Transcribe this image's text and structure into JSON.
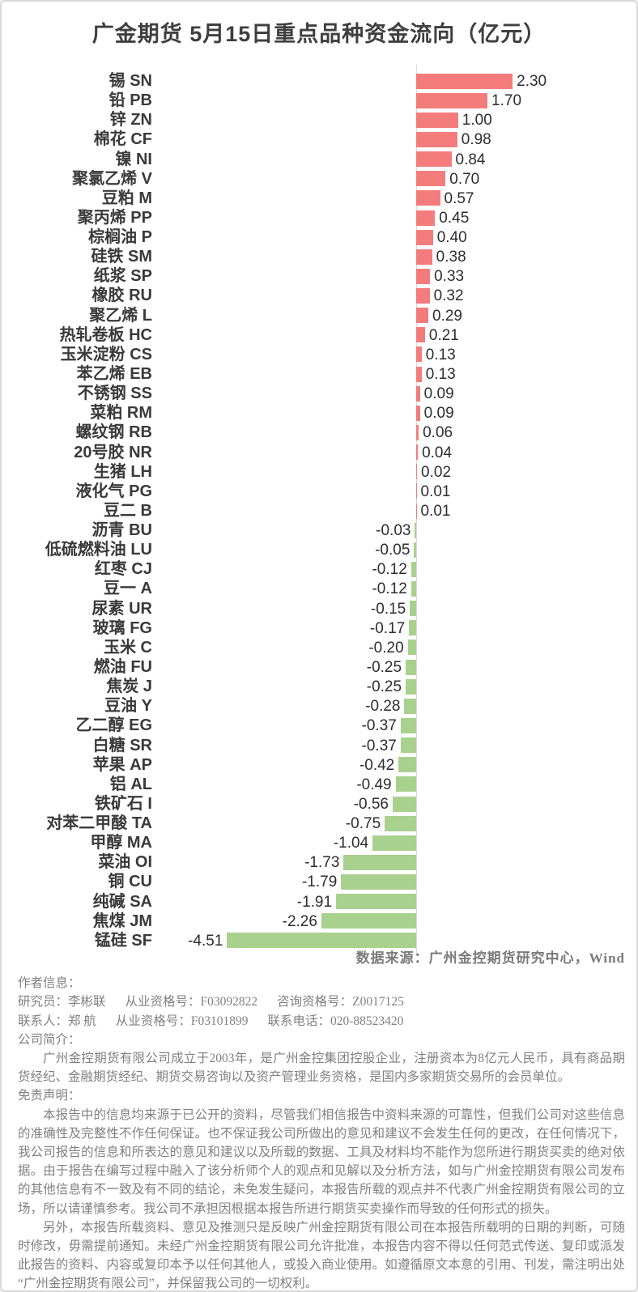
{
  "title": "广金期货 5月15日重点品种资金流向（亿元）",
  "chart_data": {
    "type": "bar",
    "orientation": "horizontal",
    "unit": "亿元",
    "zero_axis_line": true,
    "value_axis_hidden": true,
    "legend": "none",
    "bar_colors": {
      "positive": "#F47C7C",
      "negative": "#A9D18E"
    },
    "axis_line_color": "#D9D9D9",
    "categories": [
      "锡 SN",
      "铅 PB",
      "锌 ZN",
      "棉花 CF",
      "镍 NI",
      "聚氯乙烯 V",
      "豆粕 M",
      "聚丙烯 PP",
      "棕榈油 P",
      "硅铁 SM",
      "纸浆 SP",
      "橡胶 RU",
      "聚乙烯 L",
      "热轧卷板 HC",
      "玉米淀粉 CS",
      "苯乙烯 EB",
      "不锈钢 SS",
      "菜粕 RM",
      "螺纹钢 RB",
      "20号胶 NR",
      "生猪 LH",
      "液化气 PG",
      "豆二 B",
      "沥青 BU",
      "低硫燃料油 LU",
      "红枣 CJ",
      "豆一 A",
      "尿素 UR",
      "玻璃 FG",
      "玉米 C",
      "燃油 FU",
      "焦炭 J",
      "豆油 Y",
      "乙二醇 EG",
      "白糖 SR",
      "苹果 AP",
      "铝 AL",
      "铁矿石 I",
      "对苯二甲酸 TA",
      "甲醇 MA",
      "菜油 OI",
      "铜 CU",
      "纯碱 SA",
      "焦煤 JM",
      "锰硅 SF"
    ],
    "values": [
      2.3,
      1.7,
      1.0,
      0.98,
      0.84,
      0.7,
      0.57,
      0.45,
      0.4,
      0.38,
      0.33,
      0.32,
      0.29,
      0.21,
      0.13,
      0.13,
      0.09,
      0.09,
      0.06,
      0.04,
      0.02,
      0.01,
      0.01,
      -0.03,
      -0.05,
      -0.12,
      -0.12,
      -0.15,
      -0.17,
      -0.2,
      -0.25,
      -0.25,
      -0.28,
      -0.37,
      -0.37,
      -0.42,
      -0.49,
      -0.56,
      -0.75,
      -1.04,
      -1.73,
      -1.79,
      -1.91,
      -2.26,
      -4.51
    ],
    "value_format": "two-decimals"
  },
  "footer": {
    "source": "数据来源：广州金控期货研究中心，Wind",
    "author_heading": "作者信息：",
    "researcher": "研究员：李彬联",
    "researcher_qual": "从业资格号：F03092822",
    "researcher_advisory": "咨询资格号：Z0017125",
    "contact": "联系人：郑 航",
    "contact_qual": "从业资格号：F03101899",
    "contact_phone": "联系电话：020-88523420",
    "company_heading": "公司简介：",
    "company_intro": "广州金控期货有限公司成立于2003年，是广州金控集团控股企业，注册资本为8亿元人民币，具有商品期货经纪、金融期货经纪、期货交易咨询以及资产管理业务资格，是国内多家期货交易所的会员单位。",
    "disclaimer_heading": "免责声明：",
    "disclaimer_p1": "本报告中的信息均来源于已公开的资料，尽管我们相信报告中资料来源的可靠性，但我们公司对这些信息的准确性及完整性不作任何保证。也不保证我公司所做出的意见和建议不会发生任何的更改，在任何情况下，我公司报告的信息和所表达的意见和建议以及所载的数据、工具及材料均不能作为您所进行期货买卖的绝对依据。由于报告在编写过程中融入了该分析师个人的观点和见解以及分析方法，如与广州金控期货有限公司发布的其他信息有不一致及有不同的结论，未免发生疑问，本报告所载的观点并不代表广州金控期货有限公司的立场，所以请谨慎参考。我公司不承担因根据本报告所进行期货买卖操作而导致的任何形式的损失。",
    "disclaimer_p2": "另外，本报告所载资料、意见及推测只是反映广州金控期货有限公司在本报告所载明的日期的判断，可随时修改，毋需提前通知。未经广州金控期货有限公司允许批准，本报告内容不得以任何范式传送、复印或派发此报告的资料、内容或复印本予以任何其他人，或投入商业使用。如遵循原文本意的引用、刊发，需注明出处“广州金控期货有限公司”，并保留我公司的一切权利。"
  }
}
